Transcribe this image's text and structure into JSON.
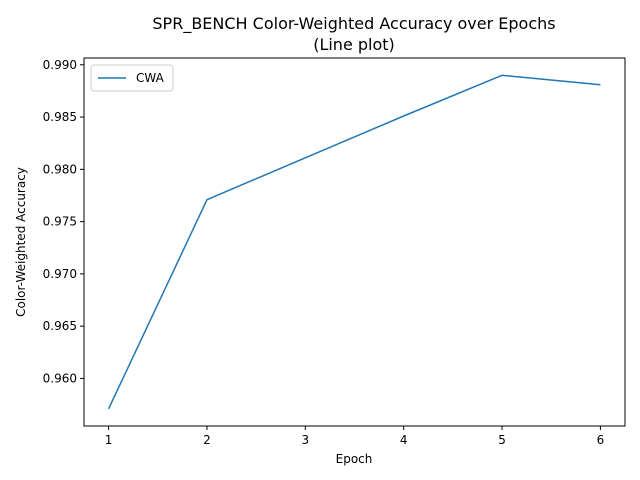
{
  "chart_data": {
    "type": "line",
    "title": "SPR_BENCH Color-Weighted Accuracy over Epochs",
    "subtitle": "(Line plot)",
    "xlabel": "Epoch",
    "ylabel": "Color-Weighted Accuracy",
    "x": [
      1,
      2,
      3,
      4,
      5,
      6
    ],
    "series": [
      {
        "name": "CWA",
        "color": "#1f77b4",
        "values": [
          0.9571,
          0.9771,
          0.9811,
          0.9851,
          0.989,
          0.9881
        ]
      }
    ],
    "xlim": [
      0.75,
      6.25
    ],
    "ylim": [
      0.95545,
      0.99065
    ],
    "xticks": [
      "1",
      "2",
      "3",
      "4",
      "5",
      "6"
    ],
    "yticks": [
      "0.960",
      "0.965",
      "0.970",
      "0.975",
      "0.980",
      "0.985",
      "0.990"
    ],
    "grid": false,
    "legend": "upper-left"
  }
}
